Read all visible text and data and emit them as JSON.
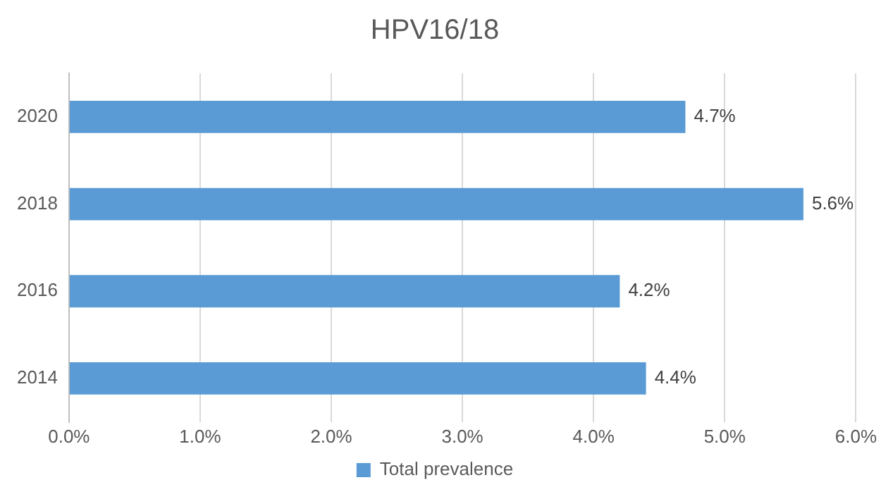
{
  "chart_data": {
    "type": "bar",
    "title": "HPV16/18",
    "orientation": "horizontal",
    "categories": [
      "2020",
      "2018",
      "2016",
      "2014"
    ],
    "series": [
      {
        "name": "Total prevalence",
        "color": "#5b9bd5",
        "values": [
          4.7,
          5.6,
          4.2,
          4.4
        ],
        "value_labels": [
          "4.7%",
          "5.6%",
          "4.2%",
          "4.4%"
        ]
      }
    ],
    "xlim": [
      0,
      6
    ],
    "xticks": [
      {
        "value": 0,
        "label": "0.0%"
      },
      {
        "value": 1,
        "label": "1.0%"
      },
      {
        "value": 2,
        "label": "2.0%"
      },
      {
        "value": 3,
        "label": "3.0%"
      },
      {
        "value": 4,
        "label": "4.0%"
      },
      {
        "value": 5,
        "label": "5.0%"
      },
      {
        "value": 6,
        "label": "6.0%"
      }
    ],
    "grid": "x",
    "legend": "bottom"
  }
}
